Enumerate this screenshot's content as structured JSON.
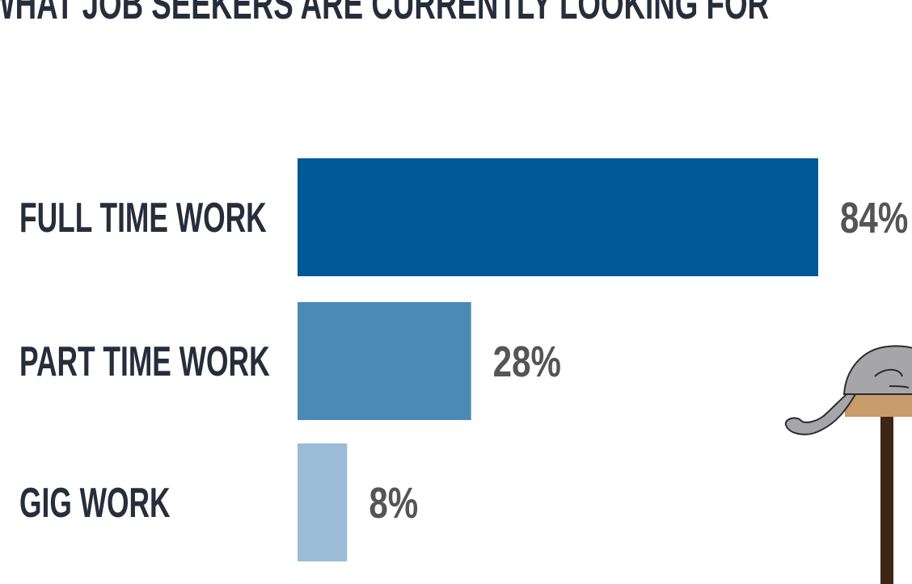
{
  "chart_data": {
    "type": "bar",
    "orientation": "horizontal",
    "title": "WHAT JOB SEEKERS ARE CURRENTLY LOOKING FOR",
    "categories": [
      "FULL TIME WORK",
      "PART TIME WORK",
      "GIG WORK"
    ],
    "values": [
      84,
      28,
      8
    ],
    "value_labels": [
      "84%",
      "28%",
      "8%"
    ],
    "unit": "%",
    "bar_colors": [
      "#015896",
      "#4b8ab6",
      "#9abcd6"
    ],
    "label_color": "#262d3b",
    "value_color": "#555555",
    "xlim": [
      0,
      100
    ],
    "grid": false,
    "legend": "none"
  },
  "decoration": {
    "illustration": "cat-on-table-icon"
  }
}
